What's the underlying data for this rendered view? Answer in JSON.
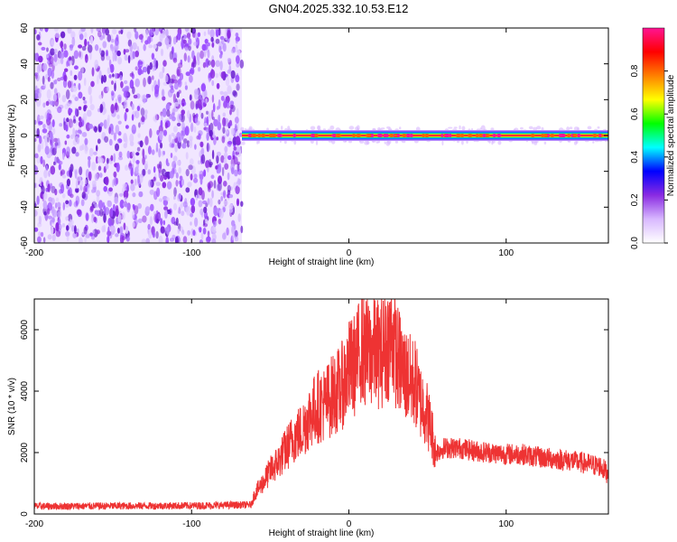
{
  "title": "GN04.2025.332.10.53.E12",
  "chart_data": [
    {
      "type": "heatmap",
      "xlabel": "Height of straight line (km)",
      "ylabel": "Frequency (Hz)",
      "xlim": [
        -200,
        165
      ],
      "ylim": [
        -60,
        60
      ],
      "x_ticks": [
        -200,
        -100,
        0,
        100
      ],
      "y_ticks": [
        -60,
        -40,
        -20,
        0,
        20,
        40,
        60
      ],
      "noise_region_x": [
        -200,
        -68
      ],
      "signal_line": {
        "x_start": -68,
        "x_end": 165,
        "frequency": 0
      },
      "colorbar": {
        "label": "Normalized spectral amplitude",
        "range": [
          0.0,
          1.0
        ],
        "ticks": [
          0.0,
          0.2,
          0.4,
          0.6,
          0.8
        ],
        "colors": [
          "#ffffff",
          "#d8b8ff",
          "#8a2be2",
          "#0000ff",
          "#00ffff",
          "#00ff00",
          "#ffff00",
          "#ff8000",
          "#ff0000",
          "#ff1493"
        ]
      }
    },
    {
      "type": "line",
      "xlabel": "Height of straight line (km)",
      "ylabel": "SNR (10 * v/v)",
      "xlim": [
        -200,
        165
      ],
      "ylim": [
        0,
        7000
      ],
      "x_ticks": [
        -200,
        -100,
        0,
        100
      ],
      "y_ticks": [
        0,
        2000,
        4000,
        6000
      ],
      "series": [
        {
          "color": "#ee3333",
          "x": [
            -200,
            -150,
            -100,
            -62,
            -60,
            -55,
            -50,
            -45,
            -40,
            -35,
            -30,
            -25,
            -20,
            -15,
            -10,
            -5,
            0,
            5,
            8,
            10,
            15,
            20,
            25,
            28,
            30,
            35,
            40,
            42,
            45,
            48,
            50,
            53,
            55,
            60,
            70,
            80,
            90,
            100,
            110,
            120,
            130,
            140,
            150,
            160,
            165
          ],
          "y": [
            250,
            260,
            270,
            300,
            650,
            1000,
            1400,
            1700,
            2100,
            2500,
            2700,
            3200,
            3500,
            3600,
            3900,
            4100,
            4700,
            4900,
            5600,
            5200,
            5300,
            5200,
            5600,
            5800,
            5200,
            4600,
            4300,
            4300,
            3700,
            3500,
            3200,
            2600,
            2000,
            2150,
            2150,
            2050,
            2000,
            1950,
            1950,
            1850,
            1800,
            1750,
            1650,
            1550,
            1300
          ]
        }
      ]
    }
  ]
}
